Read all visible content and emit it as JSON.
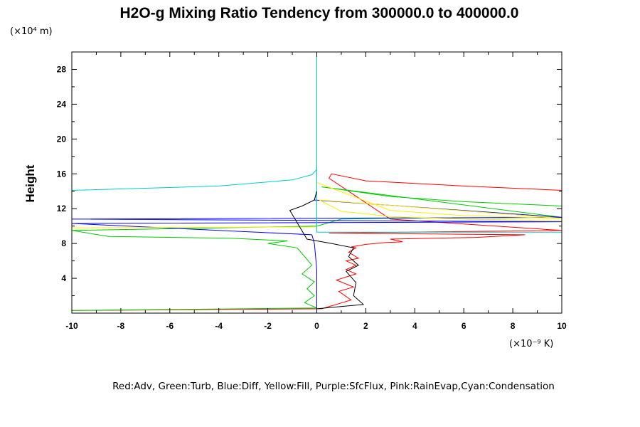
{
  "chart_data": {
    "type": "line",
    "title": "H2O-g Mixing Ratio Tendency from 300000.0 to 400000.0",
    "xlabel_unit": "(×10⁻⁹ K)",
    "ylabel": "Height",
    "ylabel_unit": "(×10⁴ m)",
    "xlim": [
      -10,
      10
    ],
    "ylim": [
      0,
      30
    ],
    "x_ticks": [
      "-10",
      "-8",
      "-6",
      "-4",
      "-2",
      "0",
      "2",
      "4",
      "6",
      "8",
      "10"
    ],
    "y_ticks": [
      "4",
      "8",
      "12",
      "16",
      "20",
      "24",
      "28"
    ],
    "grid": false,
    "legend_text": "Red:Adv, Green:Turb, Blue:Diff, Yellow:Fill, Purple:SfcFlux, Pink:RainEvap,Cyan:Condensation",
    "series": [
      {
        "color": "#ff0000",
        "x": [
          -10,
          0.2,
          1.4,
          0.9,
          1.5,
          0.8,
          1.6,
          1.2,
          1.6,
          1.2,
          1.7,
          1.3,
          1.6,
          1.4,
          2.0,
          2.8,
          3.5,
          3.0,
          6.5,
          8.5,
          0.5,
          10,
          3,
          0.5,
          0.6,
          2,
          6,
          10
        ],
        "y": [
          0.3,
          0.5,
          1.5,
          2.5,
          3.0,
          3.8,
          4.5,
          5.0,
          5.5,
          6.0,
          6.3,
          7.0,
          7.5,
          7.6,
          7.9,
          8.1,
          8.2,
          8.5,
          8.7,
          9.0,
          9.2,
          9.5,
          10.8,
          15.5,
          16.0,
          15.2,
          14.6,
          14.1
        ]
      },
      {
        "color": "#00cc00",
        "x": [
          -10,
          0,
          -0.5,
          -0.1,
          -0.4,
          -0.1,
          -0.6,
          -0.2,
          -0.5,
          -0.8,
          -2.0,
          -1.2,
          -3.5,
          -8.5,
          -10,
          0,
          1.0,
          3,
          10,
          0.2,
          3,
          6,
          10
        ],
        "y": [
          0.3,
          0.6,
          1.2,
          2.0,
          2.8,
          3.6,
          4.5,
          5.5,
          6.5,
          7.5,
          8.0,
          8.3,
          8.6,
          8.8,
          9.5,
          10.0,
          10.8,
          10.9,
          11.0,
          14.5,
          13.4,
          12.8,
          12.3
        ]
      },
      {
        "color": "#0000ff",
        "x": [
          0,
          0,
          -0.1,
          -0.2,
          -10,
          10,
          -10,
          10,
          -0.1,
          0
        ],
        "y": [
          0,
          5,
          8,
          9.0,
          10.3,
          10.5,
          10.8,
          11.0,
          13.0,
          14.0
        ]
      },
      {
        "color": "#ffee00",
        "x": [
          -10,
          0,
          0,
          3,
          6,
          10,
          0.1,
          1,
          3,
          6,
          10
        ],
        "y": [
          9.8,
          9.9,
          15.0,
          11.8,
          11.2,
          10.9,
          13.0,
          11.7,
          11.1,
          10.8,
          10.6
        ]
      },
      {
        "color": "#00cccc",
        "x": [
          -10,
          -4,
          -1,
          -0.2,
          0,
          0,
          0,
          10
        ],
        "y": [
          14.1,
          14.6,
          15.3,
          15.9,
          16.5,
          30,
          9.3,
          9.3
        ]
      },
      {
        "color": "#000000",
        "x": [
          0,
          1.9,
          1.5,
          1.6,
          1.2,
          1.7,
          1.3,
          1.5,
          0.6,
          -0.4,
          -1.1,
          -0.6,
          -0.1,
          0
        ],
        "y": [
          0.5,
          1.0,
          2.0,
          3.5,
          4.8,
          5.5,
          6.5,
          7.5,
          8.0,
          8.5,
          11.8,
          12.3,
          13.0,
          14.0
        ]
      }
    ]
  }
}
